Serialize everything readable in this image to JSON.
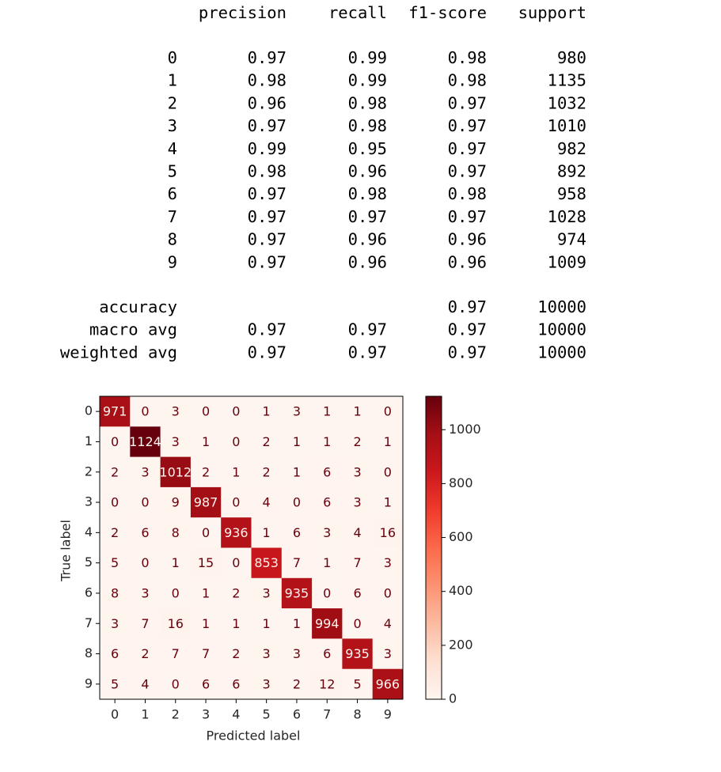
{
  "report": {
    "columns": [
      "precision",
      "recall",
      "f1-score",
      "support"
    ],
    "rows": [
      {
        "label": "0",
        "values": [
          0.97,
          0.99,
          0.98,
          980
        ]
      },
      {
        "label": "1",
        "values": [
          0.98,
          0.99,
          0.98,
          1135
        ]
      },
      {
        "label": "2",
        "values": [
          0.96,
          0.98,
          0.97,
          1032
        ]
      },
      {
        "label": "3",
        "values": [
          0.97,
          0.98,
          0.97,
          1010
        ]
      },
      {
        "label": "4",
        "values": [
          0.99,
          0.95,
          0.97,
          982
        ]
      },
      {
        "label": "5",
        "values": [
          0.98,
          0.96,
          0.97,
          892
        ]
      },
      {
        "label": "6",
        "values": [
          0.97,
          0.98,
          0.98,
          958
        ]
      },
      {
        "label": "7",
        "values": [
          0.97,
          0.97,
          0.97,
          1028
        ]
      },
      {
        "label": "8",
        "values": [
          0.97,
          0.96,
          0.96,
          974
        ]
      },
      {
        "label": "9",
        "values": [
          0.97,
          0.96,
          0.96,
          1009
        ]
      }
    ],
    "summary": [
      {
        "label": "accuracy",
        "values": [
          null,
          null,
          0.97,
          10000
        ]
      },
      {
        "label": "macro avg",
        "values": [
          0.97,
          0.97,
          0.97,
          10000
        ]
      },
      {
        "label": "weighted avg",
        "values": [
          0.97,
          0.97,
          0.97,
          10000
        ]
      }
    ]
  },
  "chart_data": {
    "type": "heatmap",
    "xlabel": "Predicted label",
    "ylabel": "True label",
    "x_categories": [
      "0",
      "1",
      "2",
      "3",
      "4",
      "5",
      "6",
      "7",
      "8",
      "9"
    ],
    "y_categories": [
      "0",
      "1",
      "2",
      "3",
      "4",
      "5",
      "6",
      "7",
      "8",
      "9"
    ],
    "values": [
      [
        971,
        0,
        3,
        0,
        0,
        1,
        3,
        1,
        1,
        0
      ],
      [
        0,
        1124,
        3,
        1,
        0,
        2,
        1,
        1,
        2,
        1
      ],
      [
        2,
        3,
        1012,
        2,
        1,
        2,
        1,
        6,
        3,
        0
      ],
      [
        0,
        0,
        9,
        987,
        0,
        4,
        0,
        6,
        3,
        1
      ],
      [
        2,
        6,
        8,
        0,
        936,
        1,
        6,
        3,
        4,
        16
      ],
      [
        5,
        0,
        1,
        15,
        0,
        853,
        7,
        1,
        7,
        3
      ],
      [
        8,
        3,
        0,
        1,
        2,
        3,
        935,
        0,
        6,
        0
      ],
      [
        3,
        7,
        16,
        1,
        1,
        1,
        1,
        994,
        0,
        4
      ],
      [
        6,
        2,
        7,
        7,
        2,
        3,
        3,
        6,
        935,
        3
      ],
      [
        5,
        4,
        0,
        6,
        6,
        3,
        2,
        12,
        5,
        966
      ]
    ],
    "colormap": "Reds",
    "clim": [
      0,
      1124
    ],
    "cticks": [
      0,
      200,
      400,
      600,
      800,
      1000
    ]
  }
}
